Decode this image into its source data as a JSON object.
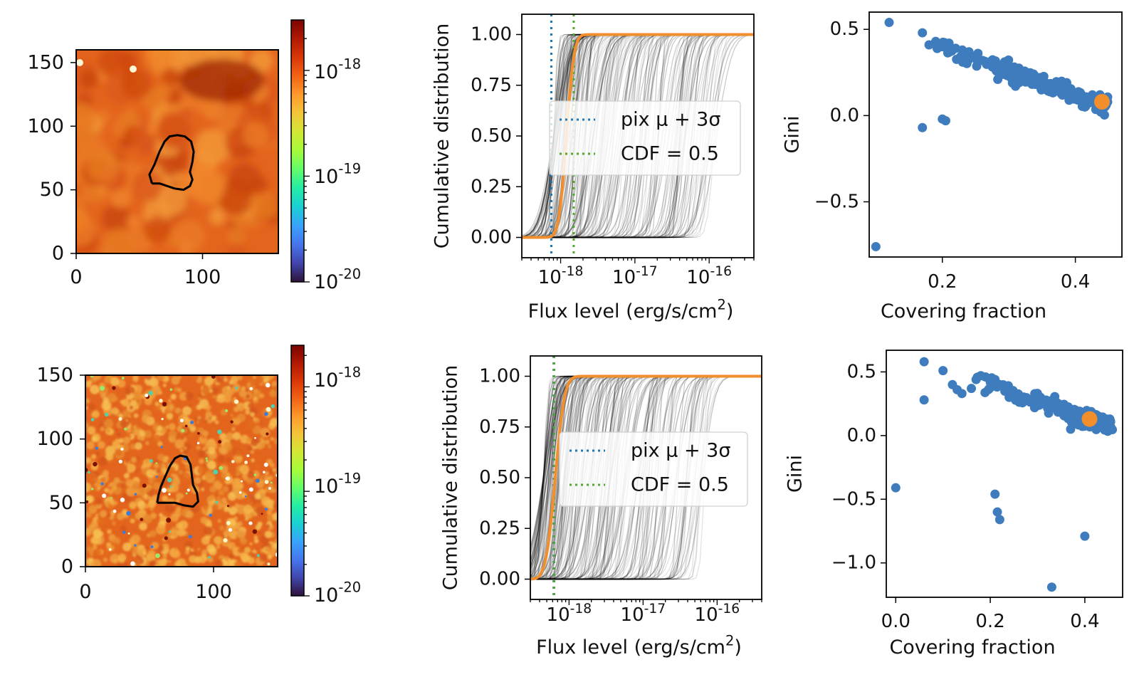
{
  "colors": {
    "cdf_line": "#000000",
    "orange": "#f28e2b",
    "blue": "#1f77b4",
    "scatter_blue": "#3e7cbd",
    "green": "#55a630",
    "contour": "#000000"
  },
  "colormap": {
    "name": "turbo",
    "stops": [
      "#30123b",
      "#4145ab",
      "#4675ed",
      "#39a2fc",
      "#1bcfd4",
      "#24eca6",
      "#61fc6c",
      "#a4fc3b",
      "#d1e834",
      "#f3c63a",
      "#fe9b2d",
      "#f36315",
      "#d93806",
      "#b11901",
      "#7a0403"
    ]
  },
  "chart_data": [
    {
      "type": "heatmap",
      "panel": "top-left image",
      "x_ticks": [
        "0",
        "100"
      ],
      "y_ticks": [
        "0",
        "50",
        "100",
        "150"
      ],
      "xlim": [
        0,
        160
      ],
      "ylim": [
        0,
        160
      ],
      "colorbar": {
        "scale": "log",
        "ticks": [
          "10^{-20}",
          "10^{-19}",
          "10^{-18}"
        ],
        "range": [
          1e-20,
          3e-18
        ]
      },
      "contour": [
        [
          60,
          55
        ],
        [
          58,
          62
        ],
        [
          62,
          70
        ],
        [
          66,
          80
        ],
        [
          70,
          88
        ],
        [
          74,
          92
        ],
        [
          80,
          93
        ],
        [
          86,
          92
        ],
        [
          91,
          88
        ],
        [
          93,
          80
        ],
        [
          92,
          72
        ],
        [
          90,
          64
        ],
        [
          92,
          58
        ],
        [
          90,
          53
        ],
        [
          85,
          50
        ],
        [
          78,
          51
        ],
        [
          72,
          53
        ],
        [
          66,
          55
        ],
        [
          60,
          55
        ]
      ]
    },
    {
      "type": "line",
      "panel": "top-middle CDF",
      "xlabel": "Flux level (erg/s/cm2)",
      "ylabel": "Cumulative distribution",
      "xscale": "log",
      "xlim": [
        3e-19,
        4e-16
      ],
      "ylim": [
        -0.1,
        1.1
      ],
      "x_ticks": [
        "10^{-18}",
        "10^{-17}",
        "10^{-16}"
      ],
      "y_ticks": [
        "0.00",
        "0.25",
        "0.50",
        "0.75",
        "1.00"
      ],
      "vlines": [
        {
          "name": "pix μ+3σ",
          "x": 7.5e-19,
          "style": "dotted",
          "color": "blue"
        },
        {
          "name": "CDF =0.5",
          "x": 1.5e-18,
          "style": "dotted",
          "color": "green"
        }
      ],
      "highlight_curve": {
        "median": 1.2e-18,
        "width_dex": 0.08
      },
      "legend": [
        "pix μ + 3σ",
        "CDF = 0.5"
      ],
      "legend_position": "center"
    },
    {
      "type": "scatter",
      "panel": "top-right",
      "xlabel": "Covering fraction",
      "ylabel": "Gini",
      "xlim": [
        0.09,
        0.47
      ],
      "ylim": [
        -0.82,
        0.6
      ],
      "x_ticks": [
        "0.2",
        "0.4"
      ],
      "y_ticks": [
        "−0.5",
        "0.0",
        "0.5"
      ],
      "trend": {
        "x_start": 0.17,
        "x_end": 0.45,
        "y_start": 0.43,
        "y_end": 0.05,
        "count": 190,
        "scatter": 0.025
      },
      "points": [
        [
          0.12,
          0.54
        ],
        [
          0.17,
          0.48
        ],
        [
          0.18,
          0.41
        ],
        [
          0.19,
          0.43
        ],
        [
          0.2,
          0.41
        ],
        [
          0.21,
          0.42
        ],
        [
          0.22,
          0.39
        ],
        [
          0.23,
          0.38
        ],
        [
          0.24,
          0.37
        ],
        [
          0.17,
          -0.07
        ],
        [
          0.2,
          -0.02
        ],
        [
          0.205,
          -0.03
        ],
        [
          0.1,
          -0.76
        ],
        [
          0.29,
          0.26
        ],
        [
          0.31,
          0.17
        ],
        [
          0.32,
          0.2
        ],
        [
          0.33,
          0.24
        ],
        [
          0.35,
          0.19
        ]
      ],
      "highlight": [
        0.44,
        0.08
      ]
    },
    {
      "type": "heatmap",
      "panel": "bottom-left image",
      "x_ticks": [
        "0",
        "100"
      ],
      "y_ticks": [
        "0",
        "50",
        "100",
        "150"
      ],
      "xlim": [
        0,
        150
      ],
      "ylim": [
        0,
        150
      ],
      "colorbar": {
        "scale": "log",
        "ticks": [
          "10^{-20}",
          "10^{-19}",
          "10^{-18}"
        ],
        "range": [
          1e-20,
          2.5e-18
        ]
      },
      "contour": [
        [
          56,
          50
        ],
        [
          57,
          56
        ],
        [
          59,
          63
        ],
        [
          62,
          70
        ],
        [
          66,
          79
        ],
        [
          70,
          85
        ],
        [
          74,
          87
        ],
        [
          79,
          86
        ],
        [
          82,
          80
        ],
        [
          83,
          72
        ],
        [
          84,
          64
        ],
        [
          87,
          58
        ],
        [
          88,
          51
        ],
        [
          84,
          47
        ],
        [
          77,
          48
        ],
        [
          70,
          50
        ],
        [
          64,
          50
        ],
        [
          56,
          50
        ]
      ]
    },
    {
      "type": "line",
      "panel": "bottom-middle CDF",
      "xlabel": "Flux level (erg/s/cm2)",
      "ylabel": "Cumulative distribution",
      "xscale": "log",
      "xlim": [
        3e-19,
        4e-16
      ],
      "ylim": [
        -0.1,
        1.1
      ],
      "x_ticks": [
        "10^{-18}",
        "10^{-17}",
        "10^{-16}"
      ],
      "y_ticks": [
        "0.00",
        "0.25",
        "0.50",
        "0.75",
        "1.00"
      ],
      "vlines": [
        {
          "name": "pix μ+3σ",
          "x": 6.2e-19,
          "style": "dotted",
          "color": "blue"
        },
        {
          "name": "CDF =0.5",
          "x": 6.3e-19,
          "style": "dotted",
          "color": "green"
        }
      ],
      "highlight_curve": {
        "median": 6.5e-19,
        "width_dex": 0.1
      },
      "legend": [
        "pix μ + 3σ",
        "CDF = 0.5"
      ],
      "legend_position": "center"
    },
    {
      "type": "scatter",
      "panel": "bottom-right",
      "xlabel": "Covering fraction",
      "ylabel": "Gini",
      "xlim": [
        -0.02,
        0.48
      ],
      "ylim": [
        -1.27,
        0.67
      ],
      "x_ticks": [
        "0.0",
        "0.2",
        "0.4"
      ],
      "y_ticks": [
        "−1.0",
        "−0.5",
        "0.0",
        "0.5"
      ],
      "trend": {
        "x_start": 0.17,
        "x_end": 0.46,
        "y_start": 0.44,
        "y_end": 0.06,
        "count": 180,
        "scatter": 0.03
      },
      "points": [
        [
          0.06,
          0.58
        ],
        [
          0.06,
          0.28
        ],
        [
          0.1,
          0.51
        ],
        [
          0.12,
          0.4
        ],
        [
          0.13,
          0.36
        ],
        [
          0.14,
          0.33
        ],
        [
          0.16,
          0.37
        ],
        [
          0.17,
          0.44
        ],
        [
          0.18,
          0.47
        ],
        [
          0.19,
          0.46
        ],
        [
          0.2,
          0.42
        ],
        [
          0.21,
          0.44
        ],
        [
          0.22,
          0.4
        ],
        [
          0.24,
          0.3
        ],
        [
          0.0,
          -0.41
        ],
        [
          0.21,
          -0.46
        ],
        [
          0.215,
          -0.6
        ],
        [
          0.22,
          -0.66
        ],
        [
          0.4,
          -0.79
        ],
        [
          0.33,
          -1.19
        ],
        [
          0.37,
          0.05
        ]
      ],
      "highlight": [
        0.41,
        0.13
      ]
    }
  ]
}
